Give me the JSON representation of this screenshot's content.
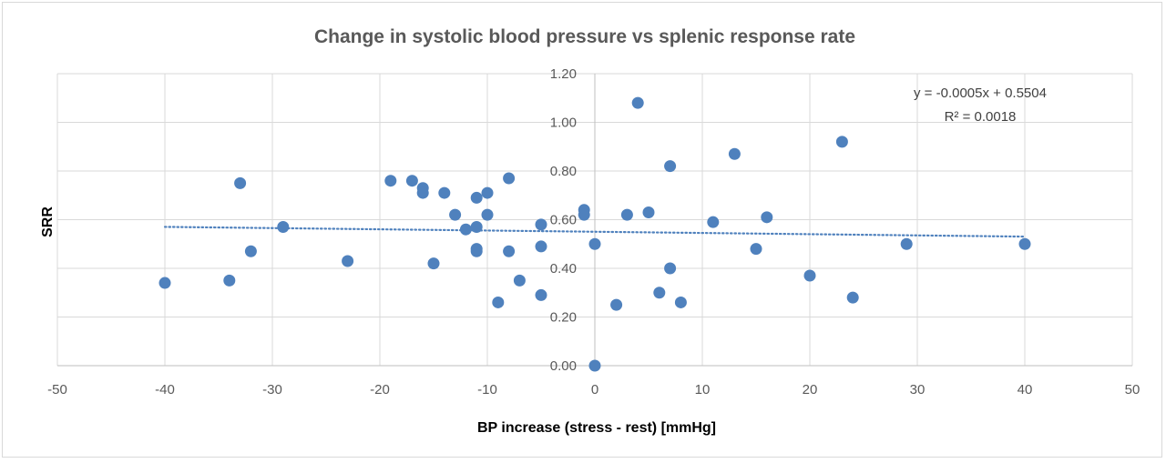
{
  "chart_data": {
    "type": "scatter",
    "title": "Change in  systolic blood pressure vs splenic response rate",
    "xlabel": "BP increase (stress - rest) [mmHg]",
    "ylabel": "SRR",
    "xlim": [
      -50,
      50
    ],
    "ylim": [
      0,
      1.2
    ],
    "x_ticks": [
      "-50",
      "-40",
      "-30",
      "-20",
      "-10",
      "0",
      "10",
      "20",
      "30",
      "40",
      "50"
    ],
    "y_ticks": [
      "0.00",
      "0.20",
      "0.40",
      "0.60",
      "0.80",
      "1.00",
      "1.20"
    ],
    "grid": true,
    "legend": false,
    "marker_color": "#4f81bd",
    "trendline": {
      "equation": "y = -0.0005x + 0.5504",
      "r_squared": "R² = 0.0018",
      "slope": -0.0005,
      "intercept": 0.5504,
      "style": "dotted"
    },
    "points": [
      {
        "x": -40,
        "y": 0.34
      },
      {
        "x": -34,
        "y": 0.35
      },
      {
        "x": -33,
        "y": 0.75
      },
      {
        "x": -32,
        "y": 0.47
      },
      {
        "x": -29,
        "y": 0.57
      },
      {
        "x": -23,
        "y": 0.43
      },
      {
        "x": -19,
        "y": 0.76
      },
      {
        "x": -17,
        "y": 0.76
      },
      {
        "x": -16,
        "y": 0.73
      },
      {
        "x": -16,
        "y": 0.71
      },
      {
        "x": -15,
        "y": 0.42
      },
      {
        "x": -14,
        "y": 0.71
      },
      {
        "x": -13,
        "y": 0.62
      },
      {
        "x": -12,
        "y": 0.56
      },
      {
        "x": -11,
        "y": 0.69
      },
      {
        "x": -11,
        "y": 0.57
      },
      {
        "x": -11,
        "y": 0.48
      },
      {
        "x": -11,
        "y": 0.47
      },
      {
        "x": -10,
        "y": 0.71
      },
      {
        "x": -10,
        "y": 0.62
      },
      {
        "x": -9,
        "y": 0.26
      },
      {
        "x": -8,
        "y": 0.77
      },
      {
        "x": -8,
        "y": 0.47
      },
      {
        "x": -7,
        "y": 0.35
      },
      {
        "x": -5,
        "y": 0.58
      },
      {
        "x": -5,
        "y": 0.49
      },
      {
        "x": -5,
        "y": 0.29
      },
      {
        "x": -1,
        "y": 0.64
      },
      {
        "x": -1,
        "y": 0.62
      },
      {
        "x": 0,
        "y": 0.5
      },
      {
        "x": 0,
        "y": 0.0
      },
      {
        "x": 2,
        "y": 0.25
      },
      {
        "x": 3,
        "y": 0.62
      },
      {
        "x": 4,
        "y": 1.08
      },
      {
        "x": 5,
        "y": 0.63
      },
      {
        "x": 6,
        "y": 0.3
      },
      {
        "x": 7,
        "y": 0.82
      },
      {
        "x": 7,
        "y": 0.4
      },
      {
        "x": 8,
        "y": 0.26
      },
      {
        "x": 11,
        "y": 0.59
      },
      {
        "x": 13,
        "y": 0.87
      },
      {
        "x": 15,
        "y": 0.48
      },
      {
        "x": 16,
        "y": 0.61
      },
      {
        "x": 20,
        "y": 0.37
      },
      {
        "x": 23,
        "y": 0.92
      },
      {
        "x": 24,
        "y": 0.28
      },
      {
        "x": 29,
        "y": 0.5
      },
      {
        "x": 40,
        "y": 0.5
      }
    ]
  }
}
